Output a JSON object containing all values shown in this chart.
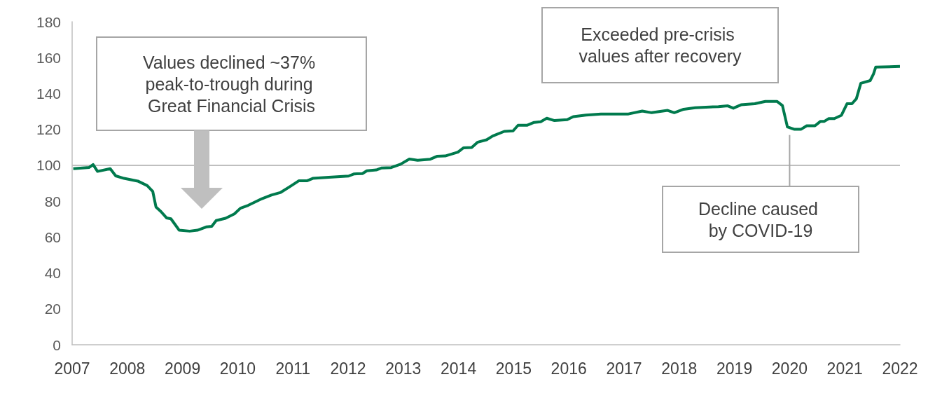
{
  "chart_data": {
    "type": "line",
    "x": [
      2007.02,
      2007.31,
      2007.38,
      2007.46,
      2007.69,
      2007.79,
      2007.94,
      2008.19,
      2008.36,
      2008.46,
      2008.52,
      2008.61,
      2008.71,
      2008.79,
      2008.94,
      2009.13,
      2009.27,
      2009.44,
      2009.53,
      2009.61,
      2009.78,
      2009.94,
      2010.05,
      2010.19,
      2010.44,
      2010.61,
      2010.78,
      2010.94,
      2011.11,
      2011.26,
      2011.36,
      2011.65,
      2012.01,
      2012.11,
      2012.26,
      2012.34,
      2012.51,
      2012.61,
      2012.78,
      2012.95,
      2013.11,
      2013.26,
      2013.49,
      2013.61,
      2013.76,
      2013.99,
      2014.09,
      2014.24,
      2014.35,
      2014.51,
      2014.62,
      2014.83,
      2014.99,
      2015.08,
      2015.24,
      2015.37,
      2015.49,
      2015.6,
      2015.74,
      2015.97,
      2016.08,
      2016.31,
      2016.58,
      2017.08,
      2017.33,
      2017.5,
      2017.79,
      2017.91,
      2018.08,
      2018.29,
      2018.71,
      2018.88,
      2018.98,
      2019.12,
      2019.37,
      2019.56,
      2019.77,
      2019.87,
      2019.96,
      2020.08,
      2020.21,
      2020.31,
      2020.46,
      2020.56,
      2020.63,
      2020.71,
      2020.81,
      2020.94,
      2021.04,
      2021.13,
      2021.21,
      2021.29,
      2021.46,
      2021.52,
      2021.56,
      2022.0
    ],
    "series": [
      {
        "color": "#007a4d",
        "values": [
          98.1,
          98.8,
          100.4,
          96.6,
          98.1,
          94.1,
          92.7,
          91.2,
          88.7,
          85.5,
          76.7,
          74.2,
          70.7,
          70.2,
          63.8,
          63.3,
          63.8,
          65.7,
          66.0,
          69.2,
          70.5,
          72.9,
          76.1,
          77.7,
          81.4,
          83.4,
          84.9,
          88.0,
          91.4,
          91.4,
          92.7,
          93.3,
          94.0,
          95.2,
          95.4,
          96.9,
          97.4,
          98.5,
          98.7,
          100.6,
          103.5,
          102.8,
          103.4,
          105.0,
          105.2,
          107.3,
          109.7,
          109.9,
          112.9,
          114.2,
          116.3,
          118.9,
          119.2,
          122.3,
          122.3,
          123.9,
          124.3,
          126.2,
          124.9,
          125.4,
          127.1,
          128.0,
          128.6,
          128.6,
          130.2,
          129.3,
          130.6,
          129.3,
          131.2,
          132.1,
          132.7,
          133.1,
          131.8,
          133.7,
          134.3,
          135.6,
          135.6,
          133.3,
          121.4,
          120.1,
          120.1,
          122.0,
          122.0,
          124.5,
          124.5,
          126.0,
          126.0,
          127.9,
          134.3,
          134.3,
          137.1,
          145.7,
          147.2,
          150.9,
          154.7,
          155.1
        ]
      }
    ],
    "xlim": [
      2007,
      2022
    ],
    "xticks": [
      2007,
      2008,
      2009,
      2010,
      2011,
      2012,
      2013,
      2014,
      2015,
      2016,
      2017,
      2018,
      2019,
      2020,
      2021,
      2022
    ],
    "ylim": [
      0,
      180
    ],
    "yticks": [
      0,
      20,
      40,
      60,
      80,
      100,
      120,
      140,
      160,
      180
    ],
    "grid": false,
    "marker": "none",
    "line_style": "solid",
    "ref_lines": [
      {
        "axis": "y",
        "value": 100,
        "color": "#bfbfbf"
      }
    ],
    "annotations": [
      "Values declined ~37% peak-to-trough during Great Financial Crisis",
      {
        "text": "Decline caused by COVID-19",
        "x": 2020.0,
        "y": 120
      },
      "Exceeded pre-crisis values after recovery"
    ]
  }
}
